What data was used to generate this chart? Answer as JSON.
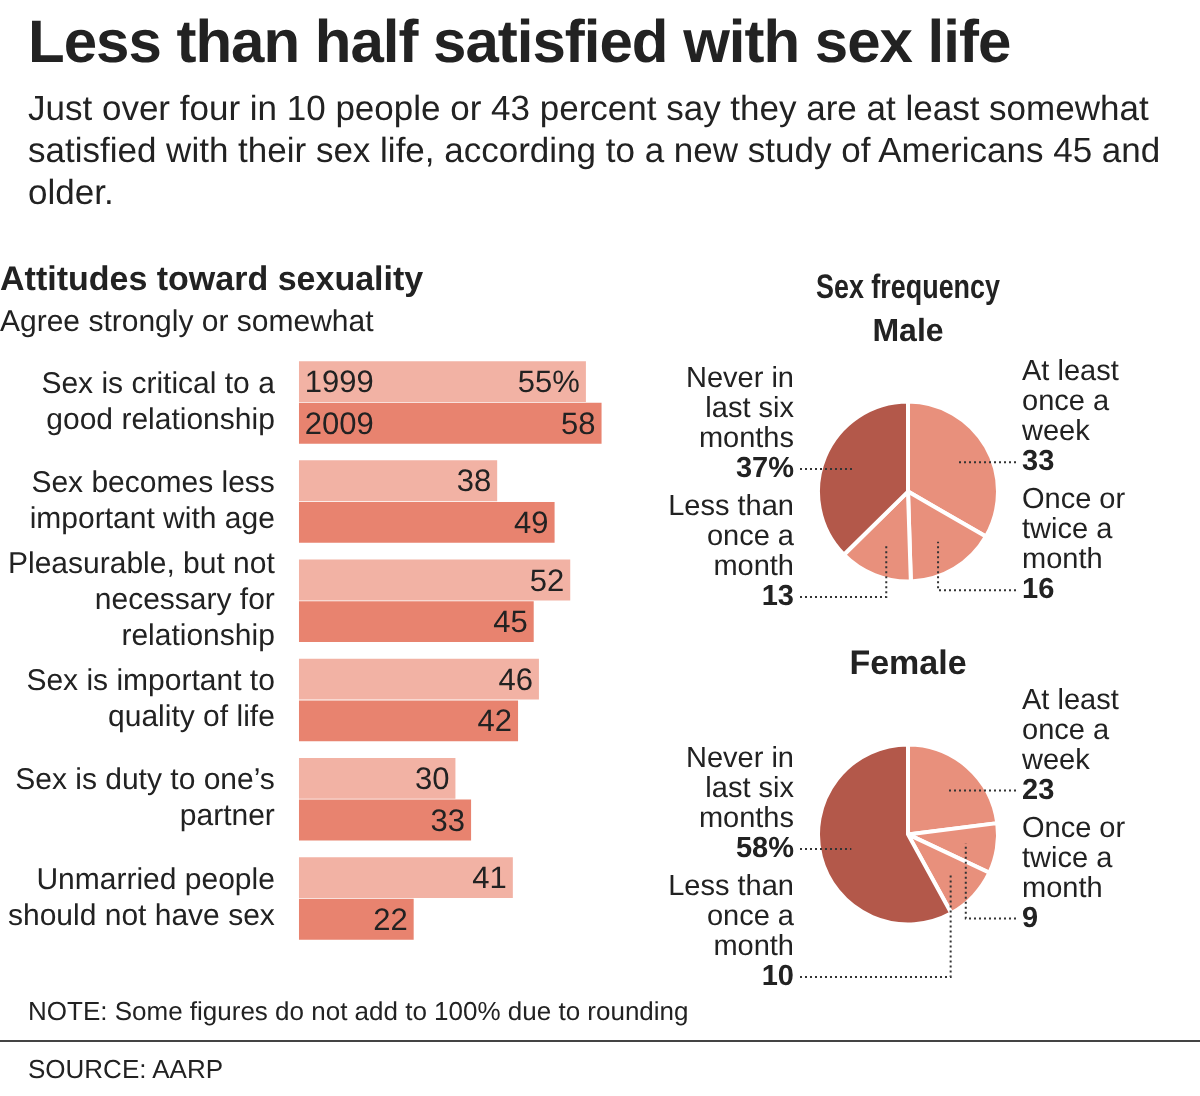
{
  "chart_data": [
    {
      "type": "other",
      "title": "Less than half satisfied with sex life",
      "subtitle": "Just over four in 10 people or 43 percent say they are at least somewhat satisfied with their sex life, according to a new study of Americans 45 and older.",
      "annotations": [
        "NOTE: Some figures do not add to 100% due to rounding",
        "SOURCE: AARP"
      ]
    },
    {
      "type": "bar",
      "orientation": "horizontal",
      "title": "Attitudes toward sexuality",
      "subtitle": "Agree strongly or somewhat",
      "categories": [
        "Sex is critical to a good relationship",
        "Sex becomes less important with age",
        "Pleasurable, but not necessary for relationship",
        "Sex is important to quality of life",
        "Sex is duty to one’s partner",
        "Unmarried people should not have sex"
      ],
      "series": [
        {
          "name": "1999",
          "color": "#f2b2a4",
          "values": [
            55,
            38,
            52,
            46,
            30,
            41
          ],
          "value_labels": [
            "55%",
            "38",
            "52",
            "46",
            "30",
            "41"
          ]
        },
        {
          "name": "2009",
          "color": "#e8836f",
          "values": [
            58,
            49,
            45,
            42,
            33,
            22
          ],
          "value_labels": [
            "58",
            "49",
            "45",
            "42",
            "33",
            "22"
          ]
        }
      ]
    },
    {
      "type": "pie",
      "title": "Sex frequency",
      "subtitle": "Male",
      "categories": [
        "At least once a week",
        "Once or twice a month",
        "Less than once a month",
        "Never in last six months"
      ],
      "values": [
        33,
        16,
        13,
        37
      ],
      "colors": [
        "#e8907c",
        "#e8907c",
        "#e8907c",
        "#b3584a"
      ],
      "value_labels": [
        "33",
        "16",
        "13",
        "37%"
      ]
    },
    {
      "type": "pie",
      "title": "Female",
      "categories": [
        "At least once a week",
        "Once or twice a month",
        "Less than once a month",
        "Never in last six months"
      ],
      "values": [
        23,
        9,
        10,
        58
      ],
      "colors": [
        "#e8907c",
        "#e8907c",
        "#e8907c",
        "#b3584a"
      ],
      "value_labels": [
        "23",
        "9",
        "10",
        "58%"
      ]
    }
  ]
}
